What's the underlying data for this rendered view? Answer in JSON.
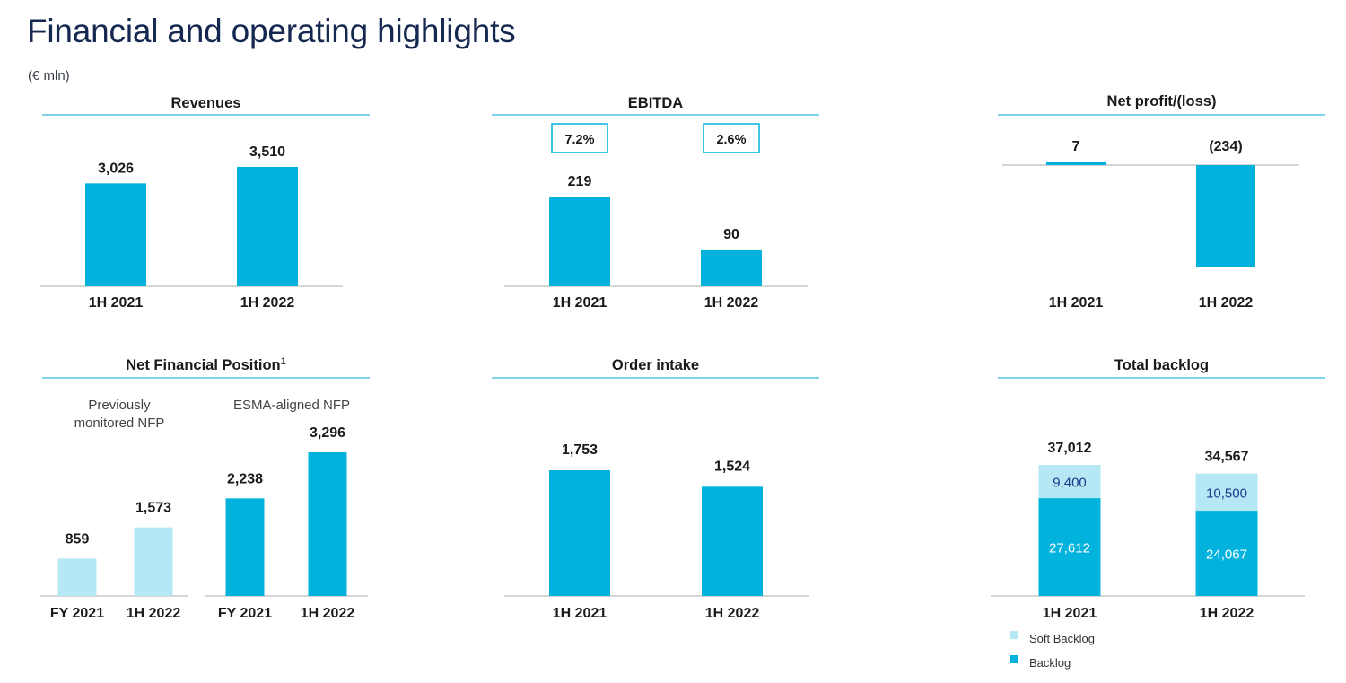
{
  "page": {
    "title": "Financial and operating highlights",
    "unit": "(€ mln)"
  },
  "colors": {
    "bar": "#00b2dc",
    "bar_light": "#b5e7f4",
    "rule": "#7fd3ec",
    "axis": "#c8c8c8",
    "text": "#1a1a1a"
  },
  "chart_data": [
    {
      "id": "revenues",
      "type": "bar",
      "title": "Revenues",
      "categories": [
        "1H 2021",
        "1H 2022"
      ],
      "values": [
        3026,
        3510
      ],
      "labels": [
        "3,026",
        "3,510"
      ],
      "ylim": [
        0,
        3510
      ]
    },
    {
      "id": "ebitda",
      "type": "bar",
      "title": "EBITDA",
      "categories": [
        "1H 2021",
        "1H 2022"
      ],
      "values": [
        219,
        90
      ],
      "labels": [
        "219",
        "90"
      ],
      "margins": [
        "7.2%",
        "2.6%"
      ],
      "ylim": [
        0,
        219
      ]
    },
    {
      "id": "netprofit",
      "type": "bar",
      "title": "Net profit/(loss)",
      "categories": [
        "1H 2021",
        "1H 2022"
      ],
      "values": [
        7,
        -234
      ],
      "labels": [
        "7",
        "(234)"
      ],
      "ylim": [
        -234,
        0
      ]
    },
    {
      "id": "nfp",
      "type": "bar",
      "title": "Net Financial Position",
      "title_sup": "1",
      "groups": [
        {
          "name": "Previously monitored NFP",
          "name_lines": [
            "Previously",
            "monitored NFP"
          ],
          "categories": [
            "FY 2021",
            "1H 2022"
          ],
          "values": [
            859,
            1573
          ],
          "labels": [
            "859",
            "1,573"
          ]
        },
        {
          "name": "ESMA-aligned NFP",
          "name_lines": [
            "ESMA-aligned NFP"
          ],
          "categories": [
            "FY 2021",
            "1H 2022"
          ],
          "values": [
            2238,
            3296
          ],
          "labels": [
            "2,238",
            "3,296"
          ]
        }
      ],
      "ylim": [
        0,
        3296
      ]
    },
    {
      "id": "orderintake",
      "type": "bar",
      "title": "Order intake",
      "categories": [
        "1H 2021",
        "1H 2022"
      ],
      "values": [
        1753,
        1524
      ],
      "labels": [
        "1,753",
        "1,524"
      ],
      "ylim": [
        0,
        1753
      ]
    },
    {
      "id": "backlog",
      "type": "stacked-bar",
      "title": "Total backlog",
      "categories": [
        "1H 2021",
        "1H 2022"
      ],
      "totals": [
        37012,
        34567
      ],
      "total_labels": [
        "37,012",
        "34,567"
      ],
      "series": [
        {
          "name": "Backlog",
          "values": [
            27612,
            24067
          ],
          "labels": [
            "27,612",
            "24,067"
          ]
        },
        {
          "name": "Soft Backlog",
          "values": [
            9400,
            10500
          ],
          "labels": [
            "9,400",
            "10,500"
          ]
        }
      ],
      "legend": [
        "Soft Backlog",
        "Backlog"
      ],
      "ylim": [
        0,
        37012
      ]
    }
  ]
}
